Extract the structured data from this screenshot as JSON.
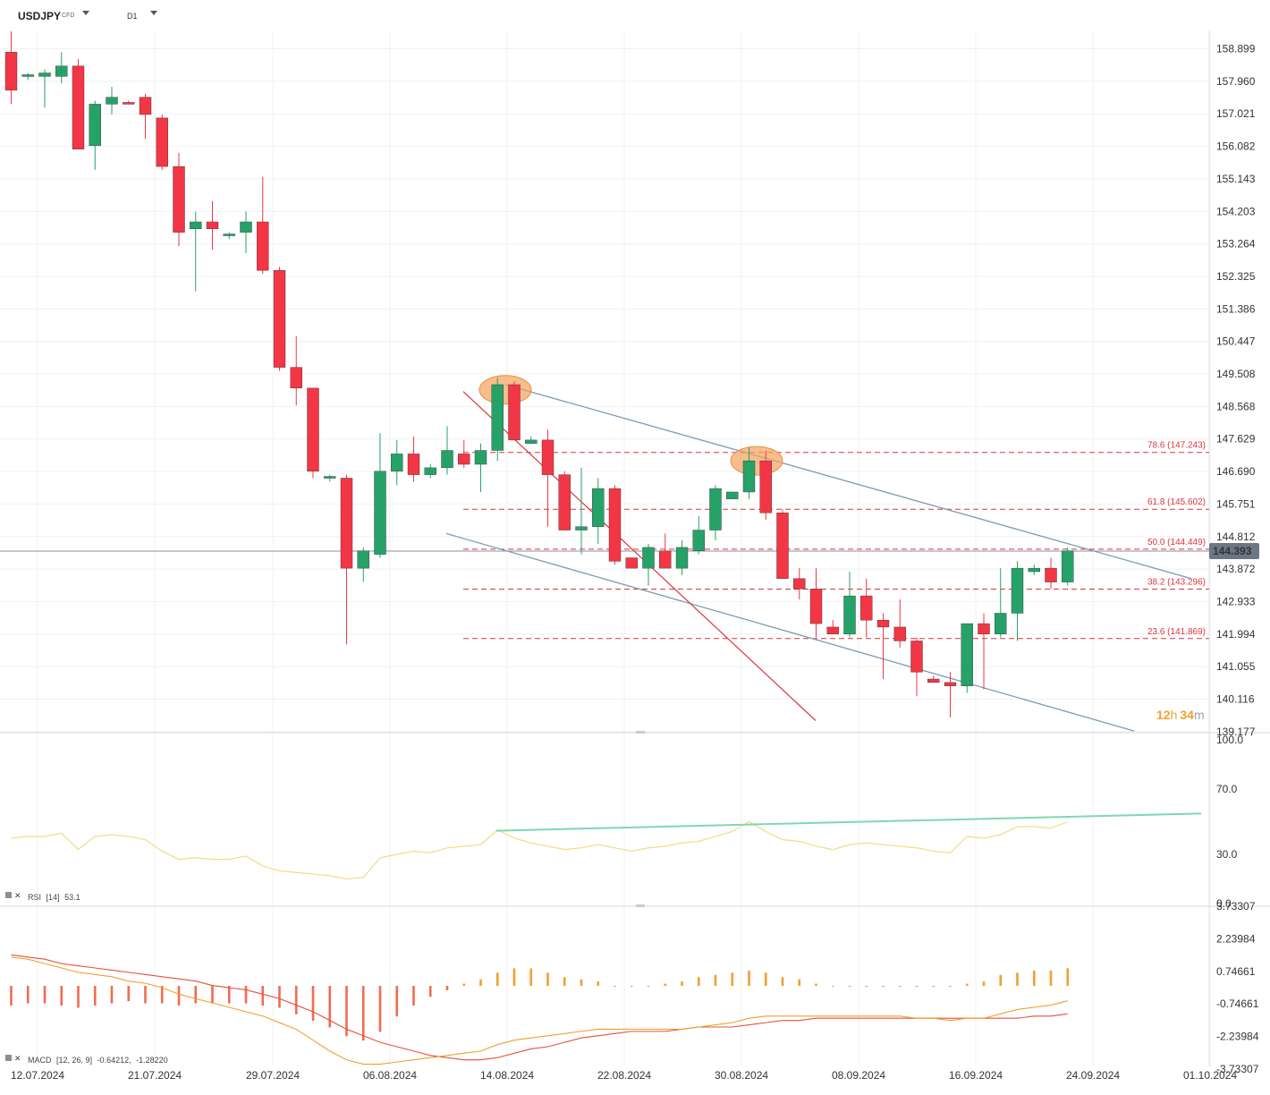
{
  "header": {
    "symbol": "USDJPY",
    "symbol_tag": "CFD",
    "timeframe": "D1"
  },
  "price_axis": {
    "ticks": [
      "158.899",
      "157.960",
      "157.021",
      "156.082",
      "155.143",
      "154.203",
      "153.264",
      "152.325",
      "151.386",
      "150.447",
      "149.508",
      "148.568",
      "147.629",
      "146.690",
      "145.751",
      "144.812",
      "143.872",
      "142.933",
      "141.994",
      "141.055",
      "140.116",
      "139.177"
    ],
    "current_price": "144.393",
    "current_price_color": "#6b7784"
  },
  "countdown": {
    "hours": "12",
    "h_unit": "h",
    "minutes": "34",
    "m_unit": "m",
    "color": "#f0a030"
  },
  "colors": {
    "up": "#26a269",
    "down": "#f23645",
    "fib": "#d9363e",
    "channel": "#7a9bb5",
    "rsi": "#f2dc82",
    "rsi_trend": "#7fd8b0",
    "macd_line": "#f0a030",
    "macd_signal": "#e8503a",
    "macd_hist": "#f0a030"
  },
  "fib_labels": [
    "78.6 (147.243)",
    "61.8 (145.602)",
    "50.0 (144.449)",
    "38.2 (143.296)",
    "23.6 (141.869)"
  ],
  "dates": [
    "12.07.2024",
    "21.07.2024",
    "29.07.2024",
    "06.08.2024",
    "14.08.2024",
    "22.08.2024",
    "30.08.2024",
    "08.09.2024",
    "16.09.2024",
    "24.09.2024",
    "01.10.2024"
  ],
  "rsi": {
    "label": "RSI",
    "params": "[14]",
    "value": "53.1",
    "ticks": [
      "100.0",
      "70.0",
      "30.0",
      "0.0"
    ]
  },
  "macd": {
    "label": "MACD",
    "params": "[12, 26, 9]",
    "v1": "-0.64212",
    "v2": "-1.28220",
    "ticks": [
      "3.73307",
      "2.23984",
      "0.74661",
      "-0.74661",
      "-2.23984",
      "-3.73307"
    ]
  },
  "chart_data": {
    "type": "candlestick",
    "symbol": "USDJPY",
    "timeframe": "D1",
    "ylim": [
      139.177,
      159.4
    ],
    "candles": [
      {
        "o": 158.8,
        "h": 159.4,
        "l": 157.3,
        "c": 157.7
      },
      {
        "o": 158.1,
        "h": 158.2,
        "l": 158.0,
        "c": 158.15
      },
      {
        "o": 158.1,
        "h": 158.3,
        "l": 157.2,
        "c": 158.2
      },
      {
        "o": 158.1,
        "h": 158.8,
        "l": 157.9,
        "c": 158.4
      },
      {
        "o": 158.4,
        "h": 158.6,
        "l": 156.0,
        "c": 156.0
      },
      {
        "o": 156.1,
        "h": 157.4,
        "l": 155.4,
        "c": 157.3
      },
      {
        "o": 157.3,
        "h": 157.8,
        "l": 157.0,
        "c": 157.5
      },
      {
        "o": 157.35,
        "h": 157.4,
        "l": 157.3,
        "c": 157.3
      },
      {
        "o": 157.5,
        "h": 157.6,
        "l": 156.3,
        "c": 157.0
      },
      {
        "o": 156.9,
        "h": 157.0,
        "l": 155.4,
        "c": 155.5
      },
      {
        "o": 155.5,
        "h": 155.9,
        "l": 153.2,
        "c": 153.6
      },
      {
        "o": 153.7,
        "h": 154.2,
        "l": 151.9,
        "c": 153.9
      },
      {
        "o": 153.9,
        "h": 154.5,
        "l": 153.1,
        "c": 153.7
      },
      {
        "o": 153.5,
        "h": 153.6,
        "l": 153.4,
        "c": 153.55
      },
      {
        "o": 153.6,
        "h": 154.2,
        "l": 153.0,
        "c": 153.9
      },
      {
        "o": 153.9,
        "h": 155.2,
        "l": 152.4,
        "c": 152.5
      },
      {
        "o": 152.5,
        "h": 152.6,
        "l": 149.6,
        "c": 149.7
      },
      {
        "o": 149.7,
        "h": 150.6,
        "l": 148.6,
        "c": 149.1
      },
      {
        "o": 149.1,
        "h": 149.1,
        "l": 146.5,
        "c": 146.7
      },
      {
        "o": 146.5,
        "h": 146.6,
        "l": 146.4,
        "c": 146.55
      },
      {
        "o": 146.5,
        "h": 146.6,
        "l": 141.7,
        "c": 143.9
      },
      {
        "o": 143.9,
        "h": 144.5,
        "l": 143.5,
        "c": 144.4
      },
      {
        "o": 144.3,
        "h": 147.8,
        "l": 144.2,
        "c": 146.7
      },
      {
        "o": 146.7,
        "h": 147.6,
        "l": 146.3,
        "c": 147.2
      },
      {
        "o": 147.2,
        "h": 147.7,
        "l": 146.4,
        "c": 146.6
      },
      {
        "o": 146.6,
        "h": 146.9,
        "l": 146.5,
        "c": 146.8
      },
      {
        "o": 146.8,
        "h": 148.0,
        "l": 146.6,
        "c": 147.3
      },
      {
        "o": 147.2,
        "h": 147.6,
        "l": 146.8,
        "c": 146.9
      },
      {
        "o": 146.9,
        "h": 147.5,
        "l": 146.1,
        "c": 147.3
      },
      {
        "o": 147.3,
        "h": 149.4,
        "l": 147.0,
        "c": 149.2
      },
      {
        "o": 149.2,
        "h": 149.3,
        "l": 147.6,
        "c": 147.6
      },
      {
        "o": 147.5,
        "h": 147.7,
        "l": 147.5,
        "c": 147.6
      },
      {
        "o": 147.6,
        "h": 147.9,
        "l": 145.1,
        "c": 146.6
      },
      {
        "o": 146.6,
        "h": 146.7,
        "l": 145.0,
        "c": 145.0
      },
      {
        "o": 145.0,
        "h": 146.8,
        "l": 144.3,
        "c": 145.1
      },
      {
        "o": 145.1,
        "h": 146.5,
        "l": 144.6,
        "c": 146.2
      },
      {
        "o": 146.2,
        "h": 146.3,
        "l": 144.0,
        "c": 144.1
      },
      {
        "o": 144.2,
        "h": 144.2,
        "l": 144.0,
        "c": 143.9
      },
      {
        "o": 143.9,
        "h": 144.6,
        "l": 143.4,
        "c": 144.5
      },
      {
        "o": 144.4,
        "h": 144.9,
        "l": 144.0,
        "c": 143.9
      },
      {
        "o": 143.9,
        "h": 144.7,
        "l": 143.7,
        "c": 144.5
      },
      {
        "o": 144.4,
        "h": 145.4,
        "l": 144.3,
        "c": 145.0
      },
      {
        "o": 145.0,
        "h": 146.3,
        "l": 144.7,
        "c": 146.2
      },
      {
        "o": 145.9,
        "h": 146.1,
        "l": 145.9,
        "c": 146.1
      },
      {
        "o": 146.1,
        "h": 147.4,
        "l": 145.9,
        "c": 147.0
      },
      {
        "o": 147.0,
        "h": 147.3,
        "l": 145.3,
        "c": 145.5
      },
      {
        "o": 145.5,
        "h": 145.6,
        "l": 143.6,
        "c": 143.6
      },
      {
        "o": 143.6,
        "h": 143.9,
        "l": 143.0,
        "c": 143.3
      },
      {
        "o": 143.3,
        "h": 143.9,
        "l": 141.9,
        "c": 142.3
      },
      {
        "o": 142.2,
        "h": 142.4,
        "l": 142.0,
        "c": 142.0
      },
      {
        "o": 142.0,
        "h": 143.8,
        "l": 141.9,
        "c": 143.1
      },
      {
        "o": 143.1,
        "h": 143.6,
        "l": 141.9,
        "c": 142.4
      },
      {
        "o": 142.4,
        "h": 142.6,
        "l": 140.7,
        "c": 142.2
      },
      {
        "o": 142.2,
        "h": 143.0,
        "l": 141.6,
        "c": 141.8
      },
      {
        "o": 141.8,
        "h": 141.9,
        "l": 140.2,
        "c": 140.9
      },
      {
        "o": 140.7,
        "h": 140.8,
        "l": 140.6,
        "c": 140.6
      },
      {
        "o": 140.6,
        "h": 140.9,
        "l": 139.6,
        "c": 140.5
      },
      {
        "o": 140.5,
        "h": 142.3,
        "l": 140.3,
        "c": 142.3
      },
      {
        "o": 142.3,
        "h": 142.6,
        "l": 140.4,
        "c": 142.0
      },
      {
        "o": 142.0,
        "h": 143.9,
        "l": 141.9,
        "c": 142.6
      },
      {
        "o": 142.6,
        "h": 144.1,
        "l": 141.8,
        "c": 143.9
      },
      {
        "o": 143.8,
        "h": 144.0,
        "l": 143.7,
        "c": 143.9
      },
      {
        "o": 143.9,
        "h": 144.2,
        "l": 143.3,
        "c": 143.5
      },
      {
        "o": 143.5,
        "h": 144.5,
        "l": 143.4,
        "c": 144.4
      }
    ],
    "fibonacci": [
      {
        "level": "78.6",
        "price": 147.243
      },
      {
        "level": "61.8",
        "price": 145.602
      },
      {
        "level": "50.0",
        "price": 144.449
      },
      {
        "level": "38.2",
        "price": 143.296
      },
      {
        "level": "23.6",
        "price": 141.869
      }
    ],
    "current_price": 144.393,
    "rsi_period": 14,
    "rsi_value": 53.1,
    "rsi_ylim": [
      0,
      100
    ],
    "rsi_values": [
      40,
      41,
      41,
      43,
      33,
      41,
      42,
      41,
      39,
      32,
      27,
      28,
      27,
      27,
      29,
      23,
      20,
      19,
      18,
      17,
      15,
      16,
      28,
      30,
      32,
      31,
      34,
      35,
      36,
      45,
      40,
      37,
      35,
      33,
      34,
      36,
      34,
      32,
      34,
      35,
      37,
      38,
      41,
      44,
      50,
      44,
      39,
      38,
      35,
      33,
      36,
      37,
      36,
      35,
      34,
      32,
      31,
      41,
      40,
      42,
      47,
      47,
      46,
      50
    ],
    "macd_params": [
      12,
      26,
      9
    ],
    "macd_value": -0.64212,
    "macd_signal_value": -1.2822,
    "macd_ylim": [
      -3.73307,
      3.73307
    ],
    "macd_line": [
      1.4,
      1.3,
      1.1,
      0.9,
      0.7,
      0.6,
      0.5,
      0.3,
      0.2,
      0.0,
      -0.3,
      -0.5,
      -0.7,
      -0.9,
      -1.1,
      -1.3,
      -1.6,
      -1.9,
      -2.4,
      -2.9,
      -3.3,
      -3.5,
      -3.5,
      -3.4,
      -3.3,
      -3.2,
      -3.1,
      -3.0,
      -2.9,
      -2.6,
      -2.4,
      -2.3,
      -2.2,
      -2.1,
      -2.0,
      -1.9,
      -1.9,
      -1.9,
      -1.9,
      -1.9,
      -1.9,
      -1.8,
      -1.7,
      -1.6,
      -1.4,
      -1.3,
      -1.3,
      -1.3,
      -1.3,
      -1.3,
      -1.3,
      -1.3,
      -1.3,
      -1.3,
      -1.4,
      -1.4,
      -1.5,
      -1.4,
      -1.4,
      -1.2,
      -1.0,
      -0.9,
      -0.8,
      -0.6
    ],
    "macd_signal": [
      1.5,
      1.4,
      1.3,
      1.1,
      1.0,
      0.9,
      0.8,
      0.7,
      0.6,
      0.5,
      0.4,
      0.3,
      0.1,
      0.0,
      -0.1,
      -0.3,
      -0.5,
      -0.8,
      -1.1,
      -1.5,
      -1.9,
      -2.2,
      -2.5,
      -2.7,
      -2.9,
      -3.1,
      -3.2,
      -3.3,
      -3.3,
      -3.2,
      -3.0,
      -2.8,
      -2.7,
      -2.5,
      -2.3,
      -2.2,
      -2.1,
      -2.0,
      -2.0,
      -2.0,
      -1.9,
      -1.8,
      -1.8,
      -1.8,
      -1.7,
      -1.6,
      -1.5,
      -1.5,
      -1.4,
      -1.4,
      -1.4,
      -1.4,
      -1.4,
      -1.4,
      -1.4,
      -1.4,
      -1.4,
      -1.4,
      -1.4,
      -1.4,
      -1.4,
      -1.3,
      -1.3,
      -1.2
    ],
    "macd_histogram": [
      -0.9,
      -0.8,
      -0.8,
      -0.9,
      -1.0,
      -0.9,
      -0.8,
      -0.7,
      -0.8,
      -0.8,
      -0.9,
      -0.8,
      -0.8,
      -0.8,
      -0.8,
      -0.9,
      -1.0,
      -1.3,
      -1.6,
      -1.9,
      -2.3,
      -2.5,
      -2.1,
      -1.4,
      -0.9,
      -0.5,
      -0.2,
      0.1,
      0.3,
      0.6,
      0.8,
      0.8,
      0.6,
      0.4,
      0.3,
      0.2,
      0.0,
      0.0,
      0.0,
      0.1,
      0.2,
      0.4,
      0.5,
      0.6,
      0.7,
      0.6,
      0.4,
      0.3,
      0.1,
      0.0,
      0.0,
      0.0,
      0.0,
      0.0,
      0.0,
      0.0,
      0.0,
      0.1,
      0.2,
      0.5,
      0.6,
      0.7,
      0.7,
      0.8
    ]
  }
}
